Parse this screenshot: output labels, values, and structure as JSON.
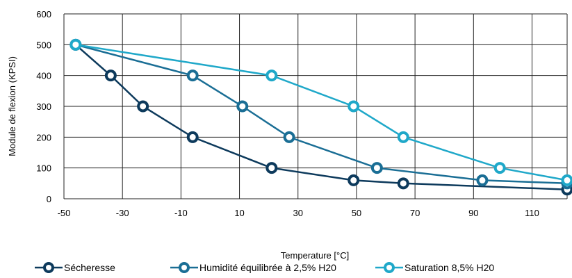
{
  "chart_data": {
    "type": "line",
    "title": "",
    "xlabel": "Temperature [°C]",
    "ylabel": "Module de flexion (KPSI)",
    "xlim": [
      -50,
      122
    ],
    "ylim": [
      0,
      600
    ],
    "x_ticks": [
      -50,
      -30,
      -10,
      10,
      30,
      50,
      70,
      90,
      110
    ],
    "y_ticks": [
      0,
      100,
      200,
      300,
      400,
      500,
      600
    ],
    "grid": true,
    "legend_position": "bottom",
    "series": [
      {
        "name": "Sécheresse",
        "color": "#0d3a5c",
        "points": [
          [
            -46,
            500
          ],
          [
            -34,
            400
          ],
          [
            -23,
            300
          ],
          [
            -6,
            200
          ],
          [
            21,
            100
          ],
          [
            49,
            60
          ],
          [
            66,
            50
          ],
          [
            122,
            30
          ]
        ]
      },
      {
        "name": "Humidité équilibrée à 2,5% H20",
        "color": "#1a6e95",
        "points": [
          [
            -46,
            500
          ],
          [
            -6,
            400
          ],
          [
            11,
            300
          ],
          [
            27,
            200
          ],
          [
            57,
            100
          ],
          [
            93,
            60
          ],
          [
            122,
            50
          ]
        ]
      },
      {
        "name": "Saturation 8,5% H20",
        "color": "#1fa8c9",
        "points": [
          [
            -46,
            500
          ],
          [
            21,
            400
          ],
          [
            49,
            300
          ],
          [
            66,
            200
          ],
          [
            99,
            100
          ],
          [
            122,
            60
          ]
        ]
      }
    ]
  }
}
